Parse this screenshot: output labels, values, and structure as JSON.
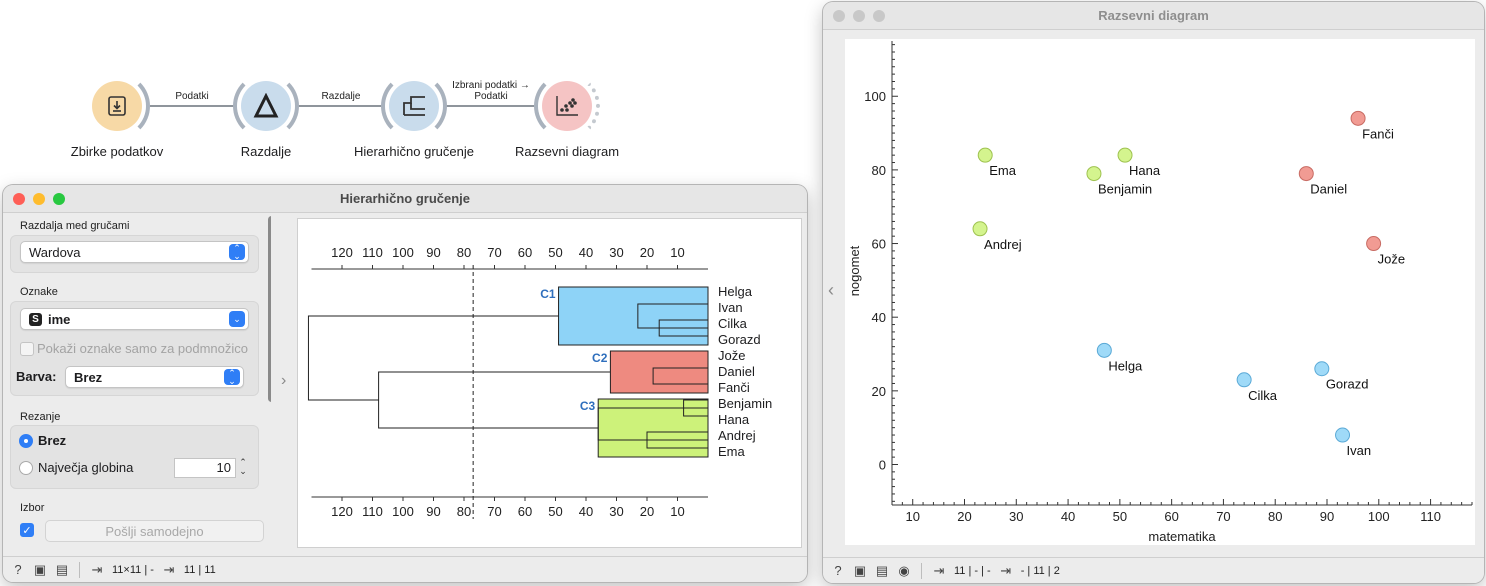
{
  "workflow": {
    "nodes": [
      {
        "id": "n1",
        "label": "Zbirke podatkov",
        "icon": "download-file-icon",
        "color": "#f7d9a6"
      },
      {
        "id": "n2",
        "label": "Razdalje",
        "icon": "delta-icon",
        "color": "#c9dcec"
      },
      {
        "id": "n3",
        "label": "Hierarhično gručenje",
        "icon": "dendrogram-icon",
        "color": "#c9dcec"
      },
      {
        "id": "n4",
        "label": "Razsevni diagram",
        "icon": "scatter-icon",
        "color": "#f5c4c4"
      }
    ],
    "links": [
      {
        "label": "Podatki"
      },
      {
        "label": "Razdalje"
      },
      {
        "label_line1": "Izbrani podatki →",
        "label_line2": "Podatki"
      }
    ]
  },
  "hc_window": {
    "title": "Hierarhično gručenje",
    "linkage_label": "Razdalja med gručami",
    "linkage_value": "Wardova",
    "annotation_label": "Oznake",
    "annotation_value": "ime",
    "annotation_type_badge": "S",
    "show_subset_label": "Pokaži oznake samo za podmnožico",
    "color_label": "Barva:",
    "color_value": "Brez",
    "pruning_label": "Rezanje",
    "pruning_none": "Brez",
    "pruning_depth": "Največja globina",
    "pruning_depth_value": "10",
    "selection_label": "Izbor",
    "send_auto_label": "Pošlji samodejno",
    "status_input": "11×11 | -",
    "status_output": "11 | 11",
    "dendrogram": {
      "axis_ticks": [
        "120",
        "110",
        "100",
        "90",
        "80",
        "70",
        "60",
        "50",
        "40",
        "30",
        "20",
        "10"
      ],
      "cut_at": 77,
      "clusters": [
        {
          "name": "C1",
          "color": "#8ed3f7",
          "members": [
            "Helga",
            "Ivan",
            "Cilka",
            "Gorazd"
          ]
        },
        {
          "name": "C2",
          "color": "#ee8a80",
          "members": [
            "Jože",
            "Daniel",
            "Fanči"
          ]
        },
        {
          "name": "C3",
          "color": "#cdf27a",
          "members": [
            "Benjamin",
            "Hana",
            "Andrej",
            "Ema"
          ]
        }
      ]
    }
  },
  "sp_window": {
    "title": "Razsevni diagram",
    "status_input": "11 | - | -",
    "status_output": "- | 11 | 2"
  },
  "chart_data": {
    "type": "scatter",
    "xlabel": "matematika",
    "ylabel": "nogomet",
    "xlim": [
      6,
      118
    ],
    "ylim": [
      -11,
      115
    ],
    "xticks": [
      10,
      20,
      30,
      40,
      50,
      60,
      70,
      80,
      90,
      100,
      110
    ],
    "yticks": [
      0,
      20,
      40,
      60,
      80,
      100
    ],
    "colors": {
      "C1": "#8ed3f7",
      "C2": "#ee8a80",
      "C3": "#cdf27a"
    },
    "points": [
      {
        "label": "Fanči",
        "x": 96,
        "y": 94,
        "cluster": "C2"
      },
      {
        "label": "Ema",
        "x": 24,
        "y": 84,
        "cluster": "C3"
      },
      {
        "label": "Hana",
        "x": 51,
        "y": 84,
        "cluster": "C3"
      },
      {
        "label": "Benjamin",
        "x": 45,
        "y": 79,
        "cluster": "C3"
      },
      {
        "label": "Daniel",
        "x": 86,
        "y": 79,
        "cluster": "C2"
      },
      {
        "label": "Andrej",
        "x": 23,
        "y": 64,
        "cluster": "C3"
      },
      {
        "label": "Jože",
        "x": 99,
        "y": 60,
        "cluster": "C2"
      },
      {
        "label": "Helga",
        "x": 47,
        "y": 31,
        "cluster": "C1"
      },
      {
        "label": "Gorazd",
        "x": 89,
        "y": 26,
        "cluster": "C1"
      },
      {
        "label": "Cilka",
        "x": 74,
        "y": 23,
        "cluster": "C1"
      },
      {
        "label": "Ivan",
        "x": 93,
        "y": 8,
        "cluster": "C1"
      }
    ]
  }
}
